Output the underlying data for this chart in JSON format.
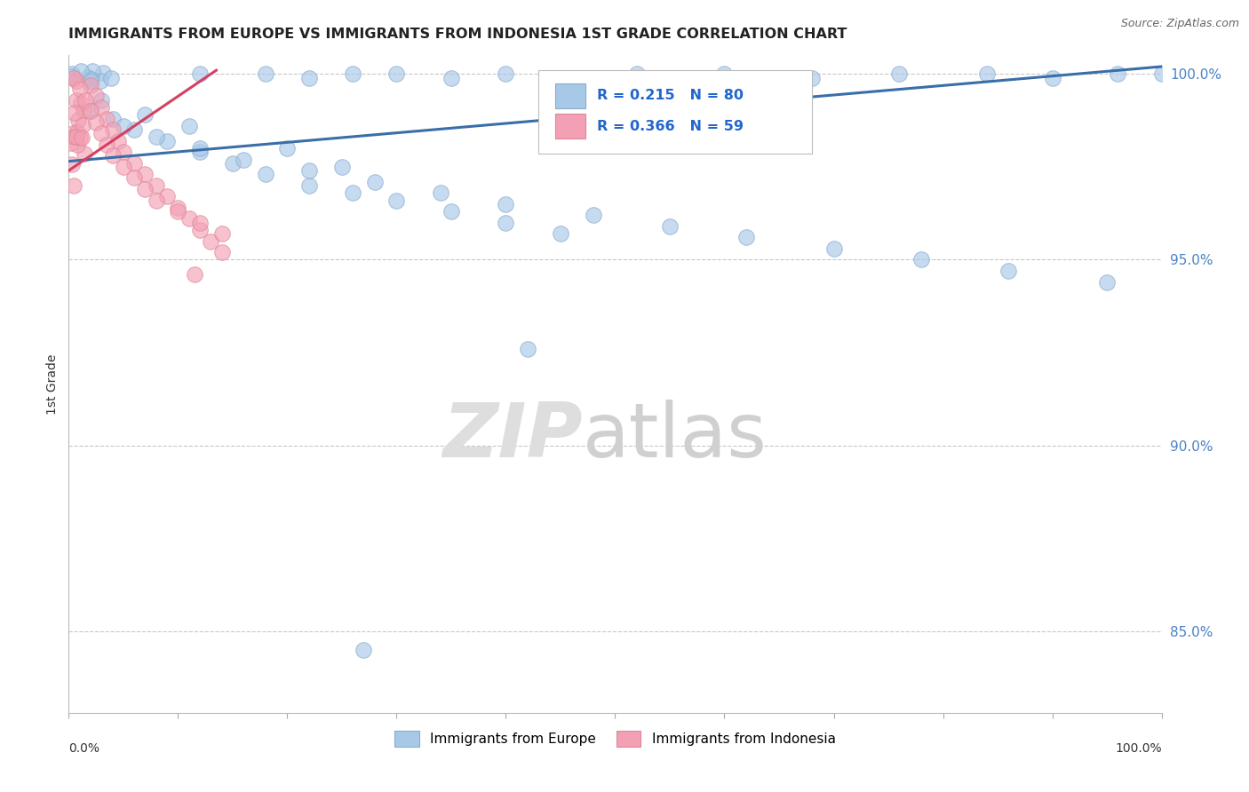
{
  "title": "IMMIGRANTS FROM EUROPE VS IMMIGRANTS FROM INDONESIA 1ST GRADE CORRELATION CHART",
  "source": "Source: ZipAtlas.com",
  "ylabel": "1st Grade",
  "legend_blue": {
    "R": 0.215,
    "N": 80,
    "label": "Immigrants from Europe"
  },
  "legend_pink": {
    "R": 0.366,
    "N": 59,
    "label": "Immigrants from Indonesia"
  },
  "background_color": "#ffffff",
  "grid_color": "#c8c8c8",
  "blue_line_color": "#3a6ea8",
  "pink_line_color": "#d44060",
  "scatter_blue_color": "#a8c8e8",
  "scatter_pink_color": "#f4a0b4",
  "scatter_blue_edge": "#88aacc",
  "scatter_pink_edge": "#dd8898",
  "xlim": [
    0.0,
    1.0
  ],
  "ylim": [
    0.828,
    1.005
  ],
  "yticks": [
    0.85,
    0.9,
    0.95,
    1.0
  ],
  "ytick_labels": [
    "85.0%",
    "90.0%",
    "95.0%",
    "100.0%"
  ],
  "blue_line_x": [
    0.0,
    1.0
  ],
  "blue_line_y": [
    0.9765,
    1.002
  ],
  "pink_line_x": [
    0.0,
    0.135
  ],
  "pink_line_y": [
    0.974,
    1.001
  ],
  "wm_zip_color": "#d8d8d8",
  "wm_atlas_color": "#c8c8c8"
}
